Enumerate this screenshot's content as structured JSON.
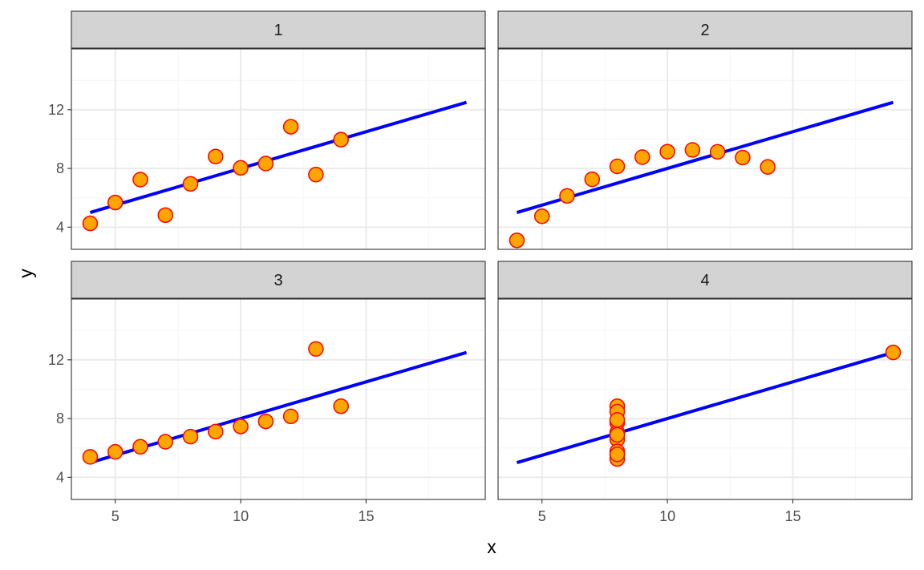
{
  "chart_data": {
    "type": "scatter",
    "xlabel": "x",
    "ylabel": "y",
    "xlim": [
      3.25,
      19.75
    ],
    "ylim": [
      2.49,
      16.14
    ],
    "x_ticks": [
      5,
      10,
      15
    ],
    "y_ticks": [
      4,
      8,
      12
    ],
    "grid": true,
    "facet_layout": "2x2",
    "colors": {
      "point_fill": "#FFA500",
      "point_stroke": "#FF0000",
      "fit_line": "#0000FF",
      "strip_fill": "#D3D3D3",
      "grid_major": "#EBEBEB",
      "grid_minor": "#F5F5F5",
      "panel_border": "#333333"
    },
    "panels": [
      {
        "label": "1",
        "fit_line": {
          "x": [
            4,
            19
          ],
          "y": [
            5.0,
            12.5
          ]
        },
        "points": [
          {
            "x": 10,
            "y": 8.04
          },
          {
            "x": 8,
            "y": 6.95
          },
          {
            "x": 13,
            "y": 7.58
          },
          {
            "x": 9,
            "y": 8.81
          },
          {
            "x": 11,
            "y": 8.33
          },
          {
            "x": 14,
            "y": 9.96
          },
          {
            "x": 6,
            "y": 7.24
          },
          {
            "x": 4,
            "y": 4.26
          },
          {
            "x": 12,
            "y": 10.84
          },
          {
            "x": 7,
            "y": 4.82
          },
          {
            "x": 5,
            "y": 5.68
          }
        ]
      },
      {
        "label": "2",
        "fit_line": {
          "x": [
            4,
            19
          ],
          "y": [
            5.0,
            12.5
          ]
        },
        "points": [
          {
            "x": 10,
            "y": 9.14
          },
          {
            "x": 8,
            "y": 8.14
          },
          {
            "x": 13,
            "y": 8.74
          },
          {
            "x": 9,
            "y": 8.77
          },
          {
            "x": 11,
            "y": 9.26
          },
          {
            "x": 14,
            "y": 8.1
          },
          {
            "x": 6,
            "y": 6.13
          },
          {
            "x": 4,
            "y": 3.1
          },
          {
            "x": 12,
            "y": 9.13
          },
          {
            "x": 7,
            "y": 7.26
          },
          {
            "x": 5,
            "y": 4.74
          }
        ]
      },
      {
        "label": "3",
        "fit_line": {
          "x": [
            4,
            19
          ],
          "y": [
            5.0,
            12.5
          ]
        },
        "points": [
          {
            "x": 10,
            "y": 7.46
          },
          {
            "x": 8,
            "y": 6.77
          },
          {
            "x": 13,
            "y": 12.74
          },
          {
            "x": 9,
            "y": 7.11
          },
          {
            "x": 11,
            "y": 7.81
          },
          {
            "x": 14,
            "y": 8.84
          },
          {
            "x": 6,
            "y": 6.08
          },
          {
            "x": 4,
            "y": 5.39
          },
          {
            "x": 12,
            "y": 8.15
          },
          {
            "x": 7,
            "y": 6.42
          },
          {
            "x": 5,
            "y": 5.73
          }
        ]
      },
      {
        "label": "4",
        "fit_line": {
          "x": [
            4,
            19
          ],
          "y": [
            5.0,
            12.5
          ]
        },
        "points": [
          {
            "x": 8,
            "y": 6.58
          },
          {
            "x": 8,
            "y": 5.76
          },
          {
            "x": 8,
            "y": 7.71
          },
          {
            "x": 8,
            "y": 8.84
          },
          {
            "x": 8,
            "y": 8.47
          },
          {
            "x": 8,
            "y": 7.04
          },
          {
            "x": 8,
            "y": 5.25
          },
          {
            "x": 19,
            "y": 12.5
          },
          {
            "x": 8,
            "y": 5.56
          },
          {
            "x": 8,
            "y": 7.91
          },
          {
            "x": 8,
            "y": 6.89
          }
        ]
      }
    ]
  }
}
